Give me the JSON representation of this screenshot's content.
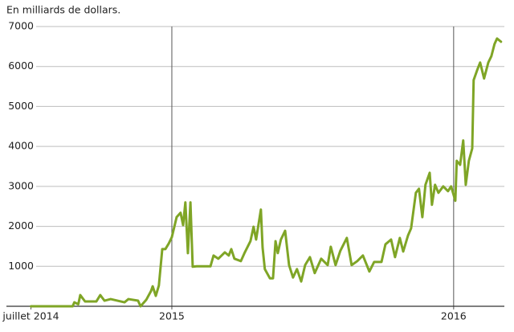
{
  "chart_data": {
    "type": "line",
    "title": "En milliards de dollars.",
    "color": "#7fa526",
    "xlim": [
      2014.413,
      2016.18
    ],
    "xticks": [
      {
        "value": 2014.5,
        "label": "juillet 2014"
      },
      2015,
      2016
    ],
    "ylim": [
      0,
      7000
    ],
    "yticks": [
      1000,
      2000,
      3000,
      4000,
      5000,
      6000,
      7000
    ],
    "grid": true,
    "x": [
      2014.5,
      2014.648,
      2014.654,
      2014.668,
      2014.675,
      2014.692,
      2014.732,
      2014.746,
      2014.761,
      2014.783,
      2014.832,
      2014.846,
      2014.88,
      2014.889,
      2014.909,
      2014.926,
      2014.932,
      2014.943,
      2014.954,
      2014.966,
      2014.977,
      2014.989,
      2015.0,
      2015.017,
      2015.031,
      2015.04,
      2015.048,
      2015.057,
      2015.066,
      2015.074,
      2015.088,
      2015.137,
      2015.148,
      2015.165,
      2015.188,
      2015.202,
      2015.211,
      2015.222,
      2015.245,
      2015.259,
      2015.279,
      2015.29,
      2015.299,
      2015.316,
      2015.322,
      2015.33,
      2015.348,
      2015.359,
      2015.368,
      2015.376,
      2015.387,
      2015.402,
      2015.416,
      2015.43,
      2015.444,
      2015.459,
      2015.473,
      2015.49,
      2015.507,
      2015.53,
      2015.553,
      2015.564,
      2015.581,
      2015.598,
      2015.621,
      2015.638,
      2015.658,
      2015.678,
      2015.701,
      2015.718,
      2015.744,
      2015.758,
      2015.778,
      2015.792,
      2015.809,
      2015.821,
      2015.838,
      2015.849,
      2015.866,
      2015.877,
      2015.889,
      2015.9,
      2015.915,
      2015.923,
      2015.934,
      2015.946,
      2015.963,
      2015.98,
      2015.991,
      2016.006,
      2016.011,
      2016.023,
      2016.034,
      2016.043,
      2016.054,
      2016.066,
      2016.071,
      2016.083,
      2016.094,
      2016.108,
      2016.123,
      2016.134,
      2016.145,
      2016.154,
      2016.168
    ],
    "values": [
      0,
      0,
      100,
      50,
      280,
      120,
      120,
      280,
      140,
      180,
      100,
      180,
      140,
      0,
      160,
      380,
      500,
      260,
      520,
      1430,
      1430,
      1570,
      1730,
      2230,
      2340,
      2030,
      2600,
      1330,
      2600,
      990,
      1000,
      1000,
      1270,
      1190,
      1350,
      1270,
      1430,
      1190,
      1130,
      1350,
      1630,
      1990,
      1670,
      2420,
      1470,
      930,
      700,
      700,
      1630,
      1330,
      1670,
      1890,
      1030,
      720,
      930,
      620,
      1030,
      1230,
      830,
      1190,
      1030,
      1490,
      1030,
      1390,
      1710,
      1030,
      1130,
      1270,
      870,
      1110,
      1110,
      1550,
      1670,
      1230,
      1710,
      1370,
      1770,
      1950,
      2840,
      2940,
      2230,
      3040,
      3340,
      2540,
      3040,
      2840,
      3000,
      2880,
      3000,
      2640,
      3640,
      3540,
      4150,
      3040,
      3640,
      3950,
      5660,
      5900,
      6100,
      5700,
      6100,
      6260,
      6560,
      6700,
      6620
    ]
  }
}
